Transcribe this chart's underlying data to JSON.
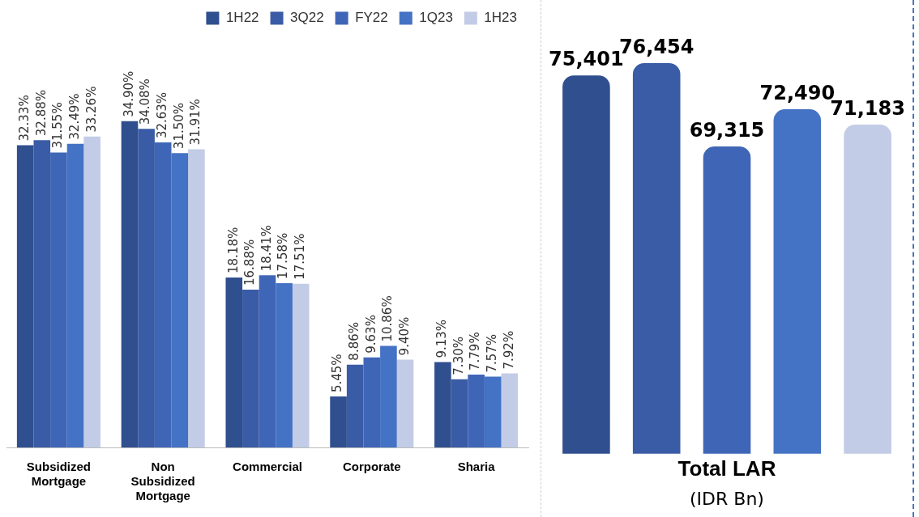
{
  "chart_data": [
    {
      "type": "bar",
      "categories": [
        "Subsidized Mortgage",
        "Non Subsidized Mortgage",
        "Commercial",
        "Corporate",
        "Sharia"
      ],
      "legend": "top right",
      "tick_labels": "x",
      "grid": false,
      "series": [
        {
          "name": "1H22",
          "color": "#2f4f8f",
          "values": [
            32.33,
            34.9,
            18.18,
            5.45,
            9.13
          ],
          "value_labels": [
            "32.33%",
            "34.90%",
            "18.18%",
            "5.45%",
            "9.13%"
          ]
        },
        {
          "name": "3Q22",
          "color": "#3a5ca6",
          "values": [
            32.88,
            34.08,
            16.88,
            8.86,
            7.3
          ],
          "value_labels": [
            "32.88%",
            "34.08%",
            "16.88%",
            "8.86%",
            "7.30%"
          ]
        },
        {
          "name": "FY22",
          "color": "#3f66b6",
          "values": [
            31.55,
            32.63,
            18.41,
            9.63,
            7.79
          ],
          "value_labels": [
            "31.55%",
            "32.63%",
            "18.41%",
            "9.63%",
            "7.79%"
          ]
        },
        {
          "name": "1Q23",
          "color": "#4472c4",
          "values": [
            32.49,
            31.5,
            17.58,
            10.86,
            7.57
          ],
          "value_labels": [
            "32.49%",
            "31.50%",
            "17.58%",
            "10.86%",
            "7.57%"
          ]
        },
        {
          "name": "1H23",
          "color": "#c3cce6",
          "values": [
            33.26,
            31.91,
            17.51,
            9.4,
            7.92
          ],
          "value_labels": [
            "33.26%",
            "31.91%",
            "17.51%",
            "9.40%",
            "7.92%"
          ]
        }
      ]
    },
    {
      "type": "bar",
      "categories": [
        null,
        null,
        null,
        null,
        null
      ],
      "xlabel": "Total LAR",
      "annotations": [
        "(IDR Bn)"
      ],
      "tick_labels": false,
      "grid": false,
      "legend": false,
      "values": [
        75401,
        76454,
        69315,
        72490,
        71183
      ],
      "colors": [
        "#2f4f8f",
        "#3a5ca6",
        "#3f66b6",
        "#4472c4",
        "#c3cce6"
      ],
      "value_labels": [
        "75,401",
        "76,454",
        "69,315",
        "72,490",
        "71,183"
      ]
    }
  ]
}
